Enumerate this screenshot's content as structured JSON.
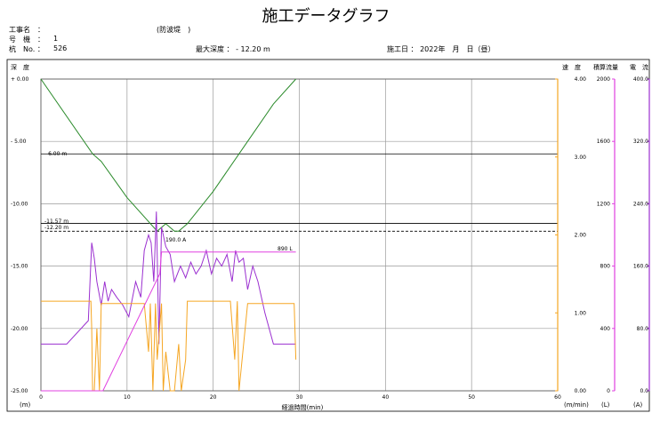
{
  "header": {
    "title": "施工データグラフ",
    "koji_label": "工事名　：",
    "koji_value": "(防波堤　)",
    "gouki_label": "号　機　：",
    "gouki_value": "1",
    "kui_label": "杭　No. ：",
    "kui_value": "526",
    "max_depth": "最大深度 ： - 12.20 m",
    "date": "施工日 ： 2022年　月　日（昼）"
  },
  "axis_titles": {
    "depth": "深　度",
    "speed": "速　度",
    "volume": "積算流量",
    "current": "電　流",
    "xlabel": "経過時間(min)",
    "x_unit": "(m)",
    "speed_unit": "(m/min)",
    "volume_unit": "(L)",
    "current_unit": "(A)"
  },
  "annotations": {
    "depth_6": "- 6.00 m",
    "depth_1157": "-11.57 m",
    "depth_1220": "-12.20 m",
    "current_peak": "190.0 A",
    "volume_final": "890 L"
  },
  "colors": {
    "depth": "#2a8a2a",
    "current": "#9b30d0",
    "speed": "#f5a623",
    "volume": "#e040e0",
    "grid": "#9a9a9a"
  },
  "chart_data": {
    "type": "line",
    "title": "施工データグラフ",
    "xlabel": "経過時間(min)",
    "xlim": [
      0,
      60
    ],
    "x_ticks": [
      "0",
      "10",
      "20",
      "30",
      "40",
      "50",
      "60"
    ],
    "axes": {
      "depth": {
        "label": "深　度",
        "unit": "(m)",
        "ylim": [
          -25,
          0
        ],
        "ticks": [
          "+ 0.00",
          "- 5.00",
          "-10.00",
          "-15.00",
          "-20.00",
          "-25.00"
        ]
      },
      "speed": {
        "label": "速　度",
        "unit": "(m/min)",
        "ylim": [
          0,
          4
        ],
        "ticks": [
          "0.00",
          "1.00",
          "2.00",
          "3.00",
          "4.00"
        ]
      },
      "volume": {
        "label": "積算流量",
        "unit": "(L)",
        "ylim": [
          0,
          2000
        ],
        "ticks": [
          "0",
          "400",
          "800",
          "1200",
          "1600",
          "2000"
        ]
      },
      "current": {
        "label": "電　流",
        "unit": "(A)",
        "ylim": [
          0,
          400
        ],
        "ticks": [
          "0.0",
          "80.0",
          "160.0",
          "240.0",
          "320.0",
          "400.0"
        ]
      }
    },
    "reference_lines": [
      {
        "label": "- 6.00 m",
        "depth": -6.0,
        "style": "solid"
      },
      {
        "label": "-11.57 m",
        "depth": -11.57,
        "style": "solid"
      },
      {
        "label": "-12.20 m",
        "depth": -12.2,
        "style": "dashed"
      }
    ],
    "series": [
      {
        "axis": "depth",
        "x": [
          0,
          6,
          7,
          10,
          13.5,
          14.5,
          15.5,
          16,
          17,
          20,
          24,
          27,
          29.6
        ],
        "y": [
          0,
          -6,
          -6.6,
          -9.5,
          -12.2,
          -11.6,
          -12.2,
          -12.2,
          -11.6,
          -9.0,
          -5.0,
          -2.0,
          0
        ]
      },
      {
        "axis": "current",
        "x": [
          0,
          3,
          5.5,
          5.9,
          6.2,
          6.5,
          7.0,
          7.4,
          7.8,
          8.2,
          8.8,
          9.5,
          10.2,
          11.0,
          11.6,
          12.0,
          12.5,
          12.8,
          13.1,
          13.4,
          13.7,
          14.0,
          14.5,
          15.0,
          15.5,
          16.2,
          16.8,
          17.4,
          18.0,
          18.6,
          19.2,
          19.8,
          20.4,
          21.0,
          21.6,
          22.2,
          22.6,
          23.0,
          23.5,
          24.0,
          24.6,
          25.2,
          26.0,
          27.0,
          28.0,
          29.6
        ],
        "y": [
          60,
          60,
          90,
          190,
          170,
          140,
          110,
          140,
          115,
          130,
          120,
          110,
          95,
          140,
          120,
          180,
          200,
          190,
          140,
          230,
          60,
          210,
          185,
          175,
          140,
          160,
          145,
          165,
          150,
          160,
          180,
          150,
          170,
          160,
          175,
          140,
          180,
          165,
          170,
          130,
          160,
          140,
          100,
          60,
          60,
          60
        ]
      },
      {
        "axis": "speed",
        "x": [
          0,
          5.8,
          5.9,
          6.0,
          6.2,
          6.5,
          6.8,
          7.0,
          8.0,
          10.0,
          12.0,
          12.5,
          12.7,
          13.0,
          13.3,
          13.5,
          14.0,
          14.2,
          14.5,
          15.0,
          15.5,
          16.0,
          16.3,
          16.8,
          17.0,
          19.0,
          21.0,
          22.0,
          22.5,
          22.8,
          23.0,
          24.0,
          26.0,
          28.0,
          29.4,
          29.6
        ],
        "y": [
          1.15,
          1.15,
          0.8,
          0.0,
          0.0,
          0.8,
          0.0,
          1.12,
          1.12,
          1.12,
          1.12,
          0.5,
          1.12,
          0.0,
          1.12,
          0.4,
          1.12,
          0.0,
          0.5,
          0.0,
          0.0,
          0.6,
          0.0,
          0.4,
          1.15,
          1.15,
          1.15,
          1.15,
          0.4,
          1.15,
          0.0,
          1.12,
          1.12,
          1.12,
          1.12,
          0.4
        ]
      },
      {
        "axis": "volume",
        "x": [
          0,
          6.8,
          7.2,
          13.8,
          14.0,
          29.6
        ],
        "y": [
          0,
          0,
          0,
          750,
          890,
          890
        ]
      }
    ],
    "grid": true
  }
}
